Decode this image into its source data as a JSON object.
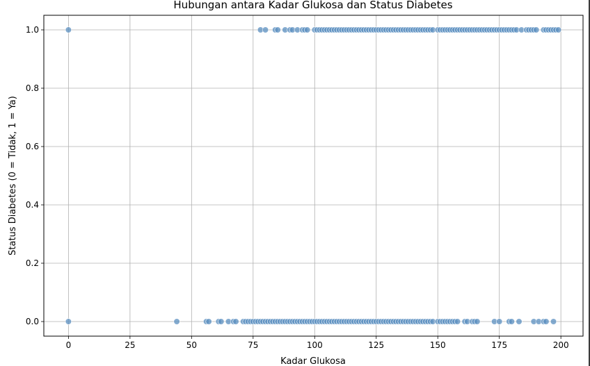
{
  "chart_data": {
    "type": "scatter",
    "title": "Hubungan antara Kadar Glukosa dan Status Diabetes",
    "xlabel": "Kadar Glukosa",
    "ylabel": "Status Diabetes (0 = Tidak, 1 = Ya)",
    "xlim": [
      -10,
      209
    ],
    "ylim": [
      -0.05,
      1.05
    ],
    "xticks": [
      0,
      25,
      50,
      75,
      100,
      125,
      150,
      175,
      200
    ],
    "yticks": [
      0.0,
      0.2,
      0.4,
      0.6,
      0.8,
      1.0
    ],
    "ytick_labels": [
      "0.0",
      "0.2",
      "0.4",
      "0.6",
      "0.8",
      "1.0"
    ],
    "grid": true,
    "marker_color": "#5b8fc0",
    "marker_edge": "#ffffff",
    "points_y1": [
      0,
      78,
      80,
      84,
      85,
      88,
      90,
      91,
      93,
      95,
      96,
      97,
      100,
      101,
      102,
      103,
      104,
      105,
      106,
      107,
      108,
      109,
      110,
      111,
      112,
      113,
      114,
      115,
      116,
      117,
      118,
      119,
      120,
      121,
      122,
      123,
      124,
      125,
      126,
      127,
      128,
      129,
      130,
      131,
      132,
      133,
      134,
      135,
      136,
      137,
      138,
      139,
      140,
      141,
      142,
      143,
      144,
      145,
      146,
      147,
      148,
      150,
      151,
      152,
      153,
      154,
      155,
      156,
      157,
      158,
      159,
      160,
      161,
      162,
      163,
      164,
      165,
      166,
      167,
      168,
      169,
      170,
      171,
      172,
      173,
      174,
      175,
      176,
      177,
      178,
      179,
      180,
      181,
      182,
      184,
      186,
      187,
      188,
      189,
      190,
      193,
      194,
      195,
      196,
      197,
      198,
      199
    ],
    "points_y0": [
      0,
      44,
      56,
      57,
      61,
      62,
      65,
      67,
      68,
      71,
      72,
      73,
      74,
      75,
      76,
      77,
      78,
      79,
      80,
      81,
      82,
      83,
      84,
      85,
      86,
      87,
      88,
      89,
      90,
      91,
      92,
      93,
      94,
      95,
      96,
      97,
      98,
      99,
      100,
      101,
      102,
      103,
      104,
      105,
      106,
      107,
      108,
      109,
      110,
      111,
      112,
      113,
      114,
      115,
      116,
      117,
      118,
      119,
      120,
      121,
      122,
      123,
      124,
      125,
      126,
      127,
      128,
      129,
      130,
      131,
      132,
      133,
      134,
      135,
      136,
      137,
      138,
      139,
      140,
      141,
      142,
      143,
      144,
      145,
      146,
      147,
      148,
      150,
      151,
      152,
      153,
      154,
      155,
      156,
      157,
      158,
      161,
      162,
      164,
      165,
      166,
      173,
      175,
      179,
      180,
      183,
      189,
      191,
      193,
      194,
      197
    ]
  }
}
